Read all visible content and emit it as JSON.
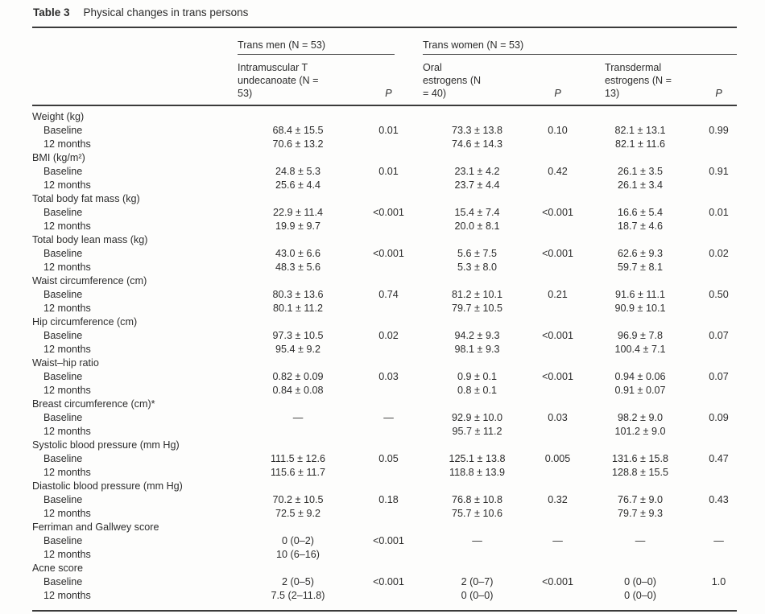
{
  "table": {
    "label": "Table 3",
    "caption": "Physical changes in trans persons",
    "groups": [
      {
        "label": "Trans men (N = 53)"
      },
      {
        "label": "Trans women (N = 53)"
      }
    ],
    "columns": [
      {
        "label": "Intramuscular T undecanoate (N = 53)"
      },
      {
        "label": "P"
      },
      {
        "label": "Oral estrogens (N = 40)"
      },
      {
        "label": "P"
      },
      {
        "label": "Transdermal estrogens (N = 13)"
      },
      {
        "label": "P"
      }
    ],
    "sections": [
      {
        "label": "Weight (kg)",
        "rows": [
          {
            "label": "Baseline",
            "values": [
              "68.4 ± 15.5",
              "0.01",
              "73.3 ± 13.8",
              "0.10",
              "82.1 ± 13.1",
              "0.99"
            ]
          },
          {
            "label": "12 months",
            "values": [
              "70.6 ± 13.2",
              "",
              "74.6 ± 14.3",
              "",
              "82.1 ± 11.6",
              ""
            ]
          }
        ]
      },
      {
        "label": "BMI (kg/m²)",
        "rows": [
          {
            "label": "Baseline",
            "values": [
              "24.8 ± 5.3",
              "0.01",
              "23.1 ± 4.2",
              "0.42",
              "26.1 ± 3.5",
              "0.91"
            ]
          },
          {
            "label": "12 months",
            "values": [
              "25.6 ± 4.4",
              "",
              "23.7 ± 4.4",
              "",
              "26.1 ± 3.4",
              ""
            ]
          }
        ]
      },
      {
        "label": "Total body fat mass (kg)",
        "rows": [
          {
            "label": "Baseline",
            "values": [
              "22.9 ± 11.4",
              "<0.001",
              "15.4 ± 7.4",
              "<0.001",
              "16.6 ± 5.4",
              "0.01"
            ]
          },
          {
            "label": "12 months",
            "values": [
              "19.9 ± 9.7",
              "",
              "20.0 ± 8.1",
              "",
              "18.7 ± 4.6",
              ""
            ]
          }
        ]
      },
      {
        "label": "Total body lean mass (kg)",
        "rows": [
          {
            "label": "Baseline",
            "values": [
              "43.0 ± 6.6",
              "<0.001",
              "5.6 ± 7.5",
              "<0.001",
              "62.6 ± 9.3",
              "0.02"
            ]
          },
          {
            "label": "12 months",
            "values": [
              "48.3 ± 5.6",
              "",
              "5.3 ± 8.0",
              "",
              "59.7 ± 8.1",
              ""
            ]
          }
        ]
      },
      {
        "label": "Waist circumference (cm)",
        "rows": [
          {
            "label": "Baseline",
            "values": [
              "80.3 ± 13.6",
              "0.74",
              "81.2 ± 10.1",
              "0.21",
              "91.6 ± 11.1",
              "0.50"
            ]
          },
          {
            "label": "12 months",
            "values": [
              "80.1 ± 11.2",
              "",
              "79.7 ± 10.5",
              "",
              "90.9 ± 10.1",
              ""
            ]
          }
        ]
      },
      {
        "label": "Hip circumference (cm)",
        "rows": [
          {
            "label": "Baseline",
            "values": [
              "97.3 ± 10.5",
              "0.02",
              "94.2 ± 9.3",
              "<0.001",
              "96.9 ± 7.8",
              "0.07"
            ]
          },
          {
            "label": "12 months",
            "values": [
              "95.4 ± 9.2",
              "",
              "98.1 ± 9.3",
              "",
              "100.4 ± 7.1",
              ""
            ]
          }
        ]
      },
      {
        "label": "Waist–hip ratio",
        "rows": [
          {
            "label": "Baseline",
            "values": [
              "0.82 ± 0.09",
              "0.03",
              "0.9 ± 0.1",
              "<0.001",
              "0.94 ± 0.06",
              "0.07"
            ]
          },
          {
            "label": "12 months",
            "values": [
              "0.84 ± 0.08",
              "",
              "0.8 ± 0.1",
              "",
              "0.91 ± 0.07",
              ""
            ]
          }
        ]
      },
      {
        "label": "Breast circumference (cm)*",
        "rows": [
          {
            "label": "Baseline",
            "values": [
              "—",
              "—",
              "92.9 ± 10.0",
              "0.03",
              "98.2 ± 9.0",
              "0.09"
            ]
          },
          {
            "label": "12 months",
            "values": [
              "",
              "",
              "95.7 ± 11.2",
              "",
              "101.2 ± 9.0",
              ""
            ]
          }
        ]
      },
      {
        "label": "Systolic blood pressure (mm Hg)",
        "rows": [
          {
            "label": "Baseline",
            "values": [
              "111.5 ± 12.6",
              "0.05",
              "125.1 ± 13.8",
              "0.005",
              "131.6 ± 15.8",
              "0.47"
            ]
          },
          {
            "label": "12 months",
            "values": [
              "115.6 ± 11.7",
              "",
              "118.8 ± 13.9",
              "",
              "128.8 ± 15.5",
              ""
            ]
          }
        ]
      },
      {
        "label": "Diastolic blood pressure (mm Hg)",
        "rows": [
          {
            "label": "Baseline",
            "values": [
              "70.2 ± 10.5",
              "0.18",
              "76.8 ± 10.8",
              "0.32",
              "76.7 ± 9.0",
              "0.43"
            ]
          },
          {
            "label": "12 months",
            "values": [
              "72.5 ± 9.2",
              "",
              "75.7 ± 10.6",
              "",
              "79.7 ± 9.3",
              ""
            ]
          }
        ]
      },
      {
        "label": "Ferriman and Gallwey score",
        "rows": [
          {
            "label": "Baseline",
            "values": [
              "0 (0–2)",
              "<0.001",
              "—",
              "—",
              "—",
              "—"
            ]
          },
          {
            "label": "12 months",
            "values": [
              "10 (6–16)",
              "",
              "",
              "",
              "",
              ""
            ]
          }
        ]
      },
      {
        "label": "Acne score",
        "rows": [
          {
            "label": "Baseline",
            "values": [
              "2 (0–5)",
              "<0.001",
              "2 (0–7)",
              "<0.001",
              "0 (0–0)",
              "1.0"
            ]
          },
          {
            "label": "12 months",
            "values": [
              "7.5 (2–11.8)",
              "",
              "0 (0–0)",
              "",
              "0 (0–0)",
              ""
            ]
          }
        ]
      }
    ]
  }
}
